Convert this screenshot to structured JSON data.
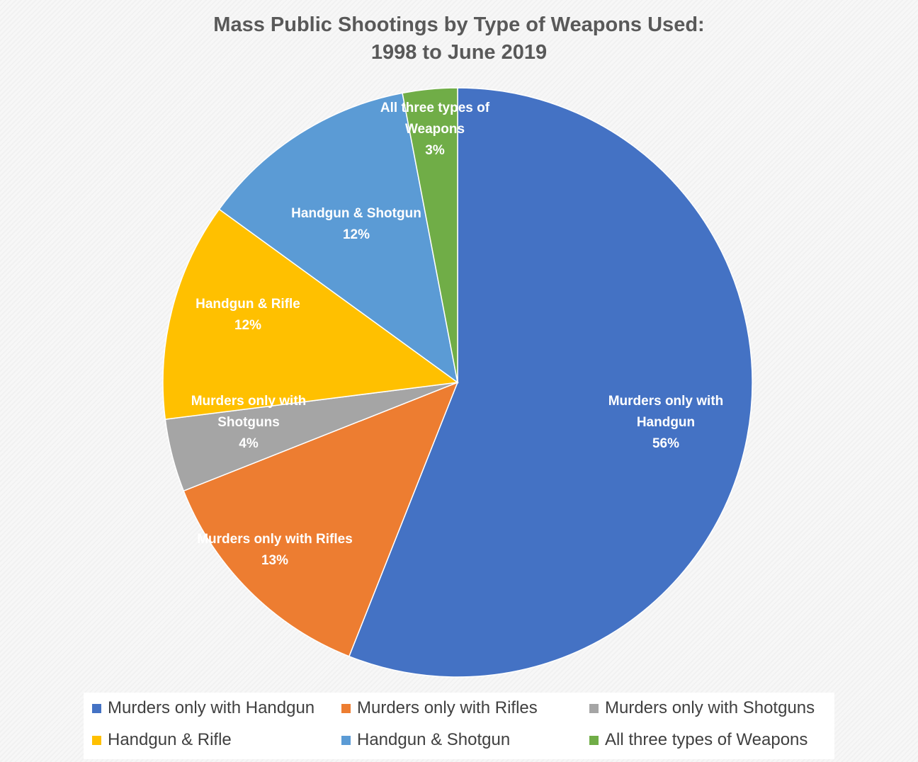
{
  "chart_data": {
    "type": "pie",
    "title_lines": [
      "Mass Public Shootings by Type of Weapons Used:",
      "1998 to June 2019"
    ],
    "start": "12 o'clock, clockwise",
    "slices": [
      {
        "label": "Murders only with Handgun",
        "display_lines": [
          "Murders only with",
          "Handgun",
          "56%"
        ],
        "value": 56,
        "color": "#4472C4"
      },
      {
        "label": "Murders only with Rifles",
        "display_lines": [
          "Murders only with Rifles",
          "13%"
        ],
        "value": 13,
        "color": "#ED7D31"
      },
      {
        "label": "Murders only with Shotguns",
        "display_lines": [
          "Murders only with",
          "Shotguns",
          "4%"
        ],
        "value": 4,
        "color": "#A5A5A5"
      },
      {
        "label": "Handgun & Rifle",
        "display_lines": [
          "Handgun & Rifle",
          "12%"
        ],
        "value": 12,
        "color": "#FFC000"
      },
      {
        "label": "Handgun & Shotgun",
        "display_lines": [
          "Handgun & Shotgun",
          "12%"
        ],
        "value": 12,
        "color": "#5B9BD5"
      },
      {
        "label": "All three types of Weapons",
        "display_lines": [
          "All three types of",
          "Weapons",
          "3%"
        ],
        "value": 3,
        "color": "#70AD47"
      }
    ],
    "legend": {
      "placement": "bottom",
      "entries": [
        "Murders only with Handgun",
        "Murders only with Rifles",
        "Murders only with Shotguns",
        "Handgun & Rifle",
        "Handgun & Shotgun",
        "All three types of Weapons"
      ]
    }
  }
}
